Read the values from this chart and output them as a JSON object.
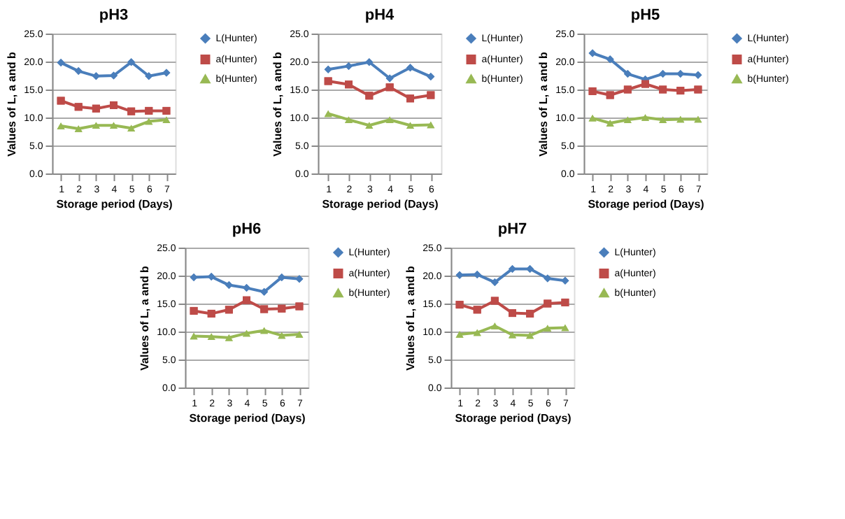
{
  "chart_data": [
    {
      "type": "line",
      "title": "pH3",
      "xlabel": "Storage  period (Days)",
      "ylabel": "Values of L, a and b",
      "categories": [
        "1",
        "2",
        "3",
        "4",
        "5",
        "6",
        "7"
      ],
      "ylim": [
        0,
        25
      ],
      "yticks": [
        {
          "value": 0,
          "label": "0.0"
        },
        {
          "value": 5,
          "label": "5.0"
        },
        {
          "value": 10,
          "label": "10.0"
        },
        {
          "value": 15,
          "label": "15.0"
        },
        {
          "value": 20,
          "label": "20.0"
        },
        {
          "value": 25,
          "label": "25.0"
        }
      ],
      "grid": "y",
      "legend": "right",
      "line_style": "solid",
      "series": [
        {
          "name": "L(Hunter)",
          "color": "#4a7ebb",
          "marker": "diamond",
          "values": [
            19.8,
            18.3,
            17.4,
            17.5,
            19.9,
            17.4,
            18.0
          ]
        },
        {
          "name": "a(Hunter)",
          "color": "#be4b48",
          "marker": "square",
          "values": [
            13.0,
            11.9,
            11.6,
            12.2,
            11.1,
            11.2,
            11.2
          ]
        },
        {
          "name": "b(Hunter)",
          "color": "#98b954",
          "marker": "triangle",
          "values": [
            8.5,
            8.0,
            8.6,
            8.6,
            8.1,
            9.3,
            9.6
          ]
        }
      ]
    },
    {
      "type": "line",
      "title": "pH4",
      "xlabel": "Storage  period (Days)",
      "ylabel": "Values of L, a and b",
      "categories": [
        "1",
        "2",
        "3",
        "4",
        "5",
        "6"
      ],
      "ylim": [
        0,
        25
      ],
      "yticks": [
        {
          "value": 0,
          "label": "0.0"
        },
        {
          "value": 5,
          "label": "5.0"
        },
        {
          "value": 10,
          "label": "10.0"
        },
        {
          "value": 15,
          "label": "15.0"
        },
        {
          "value": 20,
          "label": "20.0"
        },
        {
          "value": 25,
          "label": "25.0"
        }
      ],
      "grid": "y",
      "legend": "right",
      "line_style": "solid",
      "series": [
        {
          "name": "L(Hunter)",
          "color": "#4a7ebb",
          "marker": "diamond",
          "values": [
            18.6,
            19.2,
            19.9,
            17.0,
            18.9,
            17.3
          ]
        },
        {
          "name": "a(Hunter)",
          "color": "#be4b48",
          "marker": "square",
          "values": [
            16.5,
            15.9,
            13.9,
            15.4,
            13.4,
            14.0
          ]
        },
        {
          "name": "b(Hunter)",
          "color": "#98b954",
          "marker": "triangle",
          "values": [
            10.7,
            9.6,
            8.6,
            9.6,
            8.6,
            8.7
          ]
        }
      ]
    },
    {
      "type": "line",
      "title": "pH5",
      "xlabel": "Storage  period (Days)",
      "ylabel": "Values of L, a and b",
      "categories": [
        "1",
        "2",
        "3",
        "4",
        "5",
        "6",
        "7"
      ],
      "ylim": [
        0,
        25
      ],
      "yticks": [
        {
          "value": 0,
          "label": "0.0"
        },
        {
          "value": 5,
          "label": "5.0"
        },
        {
          "value": 10,
          "label": "10.0"
        },
        {
          "value": 15,
          "label": "15.0"
        },
        {
          "value": 20,
          "label": "20.0"
        },
        {
          "value": 25,
          "label": "25.0"
        }
      ],
      "grid": "y",
      "legend": "right",
      "line_style": "solid",
      "series": [
        {
          "name": "L(Hunter)",
          "color": "#4a7ebb",
          "marker": "diamond",
          "values": [
            21.5,
            20.4,
            17.8,
            16.8,
            17.8,
            17.8,
            17.6
          ]
        },
        {
          "name": "a(Hunter)",
          "color": "#be4b48",
          "marker": "square",
          "values": [
            14.7,
            14.0,
            15.0,
            16.0,
            15.0,
            14.8,
            15.0
          ]
        },
        {
          "name": "b(Hunter)",
          "color": "#98b954",
          "marker": "triangle",
          "values": [
            9.9,
            9.0,
            9.6,
            10.0,
            9.6,
            9.7,
            9.7
          ]
        }
      ]
    },
    {
      "type": "line",
      "title": "pH6",
      "xlabel": "Storage  period (Days)",
      "ylabel": "Values of L, a and b",
      "categories": [
        "1",
        "2",
        "3",
        "4",
        "5",
        "6",
        "7"
      ],
      "ylim": [
        0,
        25
      ],
      "yticks": [
        {
          "value": 0,
          "label": "0.0"
        },
        {
          "value": 5,
          "label": "5.0"
        },
        {
          "value": 10,
          "label": "10.0"
        },
        {
          "value": 15,
          "label": "15.0"
        },
        {
          "value": 20,
          "label": "20.0"
        },
        {
          "value": 25,
          "label": "25.0"
        }
      ],
      "grid": "y",
      "legend": "right",
      "line_style": "solid",
      "series": [
        {
          "name": "L(Hunter)",
          "color": "#4a7ebb",
          "marker": "diamond",
          "values": [
            19.7,
            19.8,
            18.3,
            17.8,
            17.1,
            19.7,
            19.4
          ]
        },
        {
          "name": "a(Hunter)",
          "color": "#be4b48",
          "marker": "square",
          "values": [
            13.7,
            13.2,
            13.9,
            15.6,
            14.0,
            14.1,
            14.5
          ]
        },
        {
          "name": "b(Hunter)",
          "color": "#98b954",
          "marker": "triangle",
          "values": [
            9.2,
            9.1,
            8.9,
            9.7,
            10.2,
            9.3,
            9.5
          ]
        }
      ]
    },
    {
      "type": "line",
      "title": "pH7",
      "xlabel": "Storage  period (Days)",
      "ylabel": "Values of L, a and b",
      "categories": [
        "1",
        "2",
        "3",
        "4",
        "5",
        "6",
        "7"
      ],
      "ylim": [
        0,
        25
      ],
      "yticks": [
        {
          "value": 0,
          "label": "0.0"
        },
        {
          "value": 5,
          "label": "5.0"
        },
        {
          "value": 10,
          "label": "10.0"
        },
        {
          "value": 15,
          "label": "15.0"
        },
        {
          "value": 20,
          "label": "20.0"
        },
        {
          "value": 25,
          "label": "25.0"
        }
      ],
      "grid": "y",
      "legend": "right",
      "line_style": "solid",
      "series": [
        {
          "name": "L(Hunter)",
          "color": "#4a7ebb",
          "marker": "diamond",
          "values": [
            20.1,
            20.2,
            18.8,
            21.2,
            21.2,
            19.5,
            19.1
          ]
        },
        {
          "name": "a(Hunter)",
          "color": "#be4b48",
          "marker": "square",
          "values": [
            14.8,
            13.9,
            15.5,
            13.3,
            13.2,
            15.0,
            15.2
          ]
        },
        {
          "name": "b(Hunter)",
          "color": "#98b954",
          "marker": "triangle",
          "values": [
            9.5,
            9.8,
            11.0,
            9.4,
            9.3,
            10.6,
            10.7
          ]
        }
      ]
    }
  ]
}
